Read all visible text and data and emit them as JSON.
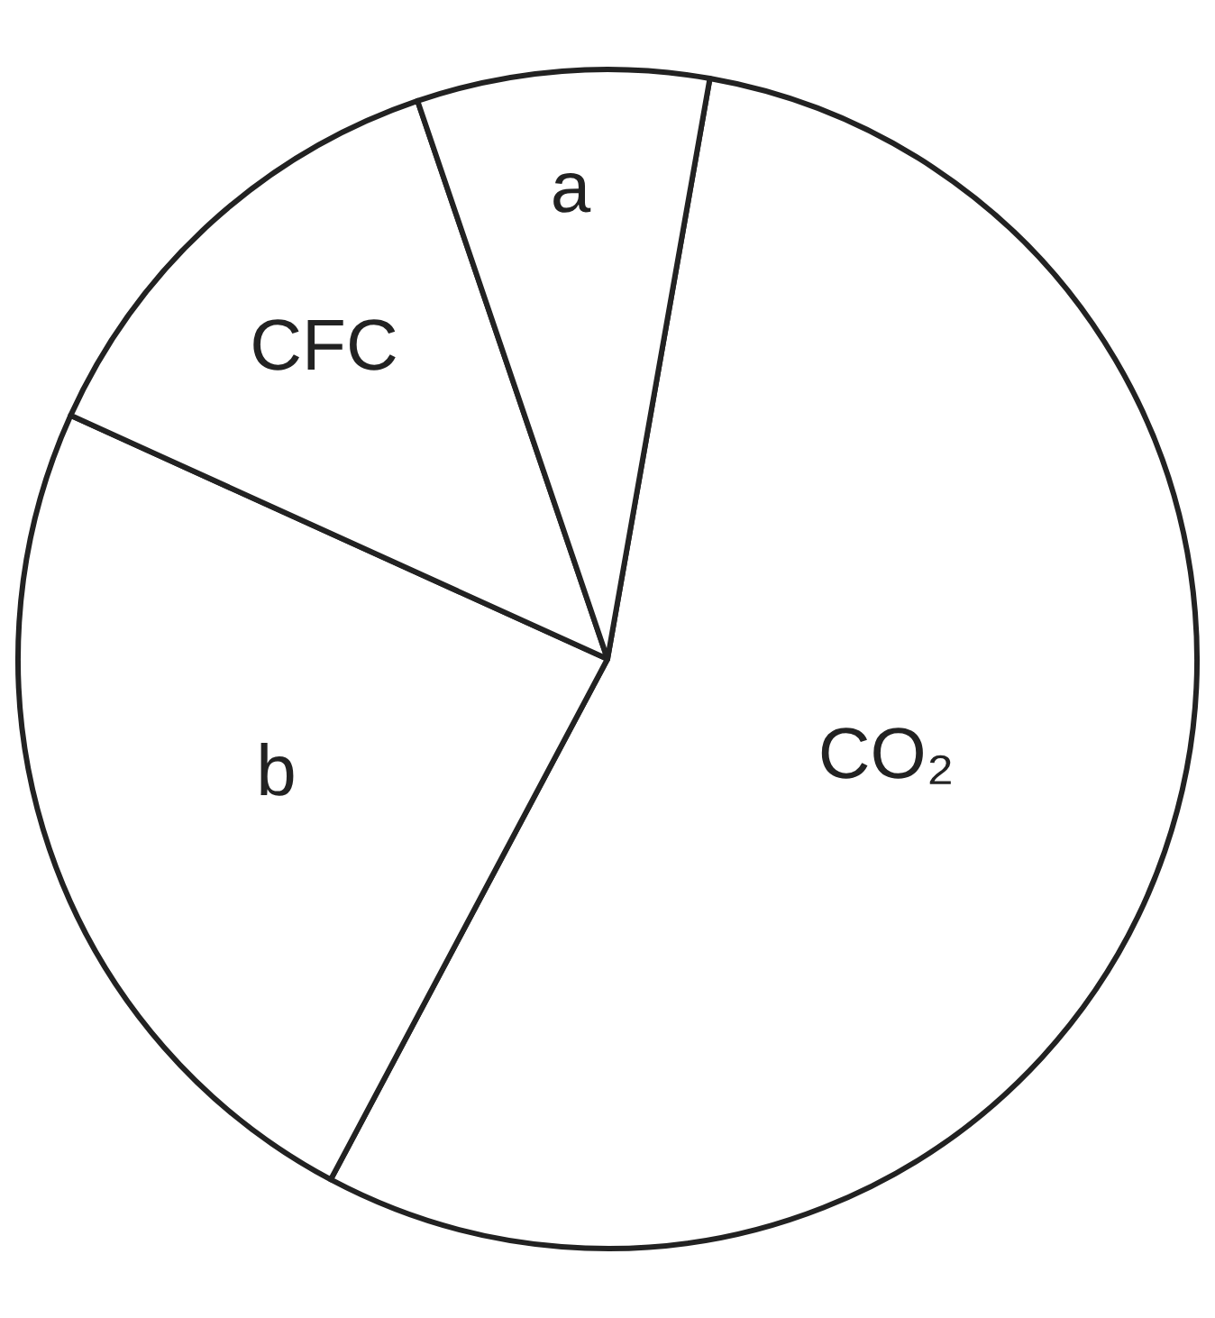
{
  "chart_data": {
    "type": "pie",
    "categories": [
      "CO₂",
      "b",
      "CFC",
      "a"
    ],
    "values": [
      55,
      24,
      13,
      8
    ],
    "colors": [
      "#ffffff",
      "#ffffff",
      "#ffffff",
      "#ffffff"
    ],
    "legend": false
  }
}
